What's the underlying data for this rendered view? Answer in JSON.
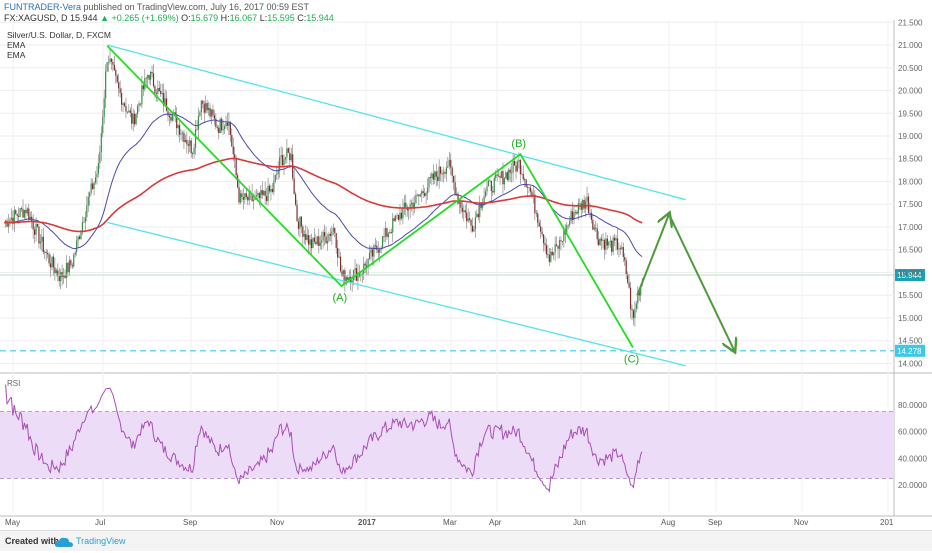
{
  "header": {
    "author": "FUNTRADER-Vera",
    "published_text": "published on TradingView.com, July 16, 2017 00:59 EST",
    "symbol_line": "FX:XAGUSD, D",
    "last": "15.944",
    "change": "+0.265 (+1.69%)",
    "o_label": "O:",
    "o_value": "15.679",
    "h_label": "H:",
    "h_value": "16.067",
    "l_label": "L:",
    "l_value": "15.595",
    "c_label": "C:",
    "c_value": "15.944"
  },
  "legend": {
    "title": "Silver/U.S. Dollar, D, FXCM",
    "indicator1": "EMA",
    "indicator2": "EMA"
  },
  "colors": {
    "bull": "#3b8d48",
    "bear": "#7b2c2c",
    "channel": "#55e3ee",
    "wave": "#22dd22",
    "projection": "#4f9a3c",
    "ema_fast": "#4a4aa8",
    "ema_slow": "#d93838",
    "rsi": "#a64fb5",
    "rsi_band": "#ecdcf7",
    "support": "#3cc8e6",
    "last_price": "#1aa1b5"
  },
  "chart_data": {
    "type": "candlestick",
    "symbol": "XAGUSD",
    "timeframe": "D",
    "y_axis_ticks": [
      "21.500",
      "21.000",
      "20.500",
      "20.000",
      "19.500",
      "19.000",
      "18.500",
      "18.000",
      "17.500",
      "17.000",
      "16.500",
      "16.000",
      "15.500",
      "15.000",
      "14.500",
      "14.000"
    ],
    "ylim": [
      13.9,
      21.55
    ],
    "x_axis_ticks": [
      "May",
      "Jul",
      "Sep",
      "Nov",
      "2017",
      "Mar",
      "Apr",
      "Jun",
      "Aug",
      "Sep",
      "Nov",
      "201"
    ],
    "last_price_label": "15.944",
    "support_label": "14.278",
    "support_level": 14.278,
    "wave_points": [
      {
        "date": "2016-07-04",
        "price": 20.98,
        "label": ""
      },
      {
        "date": "2016-12-15",
        "price": 15.7,
        "label": "(A)"
      },
      {
        "date": "2017-04-18",
        "price": 18.6,
        "label": "(B)"
      },
      {
        "date": "2017-07-07",
        "price": 14.35,
        "label": "(C)"
      }
    ],
    "projection_points": [
      {
        "date": "2017-07-10",
        "price": 15.5
      },
      {
        "date": "2017-08-01",
        "price": 17.28
      },
      {
        "date": "2017-09-14",
        "price": 14.28
      }
    ],
    "channel_upper": [
      {
        "date": "2016-07-04",
        "price": 21.0
      },
      {
        "date": "2017-08-12",
        "price": 17.6
      }
    ],
    "channel_lower": [
      {
        "date": "2016-07-04",
        "price": 17.1
      },
      {
        "date": "2017-08-12",
        "price": 13.95
      }
    ],
    "rsi": {
      "label": "RSI",
      "ticks": [
        "80.0000",
        "60.0000",
        "40.0000",
        "20.0000"
      ],
      "band": [
        25,
        75
      ],
      "ylim": [
        0,
        100
      ]
    }
  },
  "footer": {
    "created_with": "Created with",
    "brand": "TradingView"
  }
}
